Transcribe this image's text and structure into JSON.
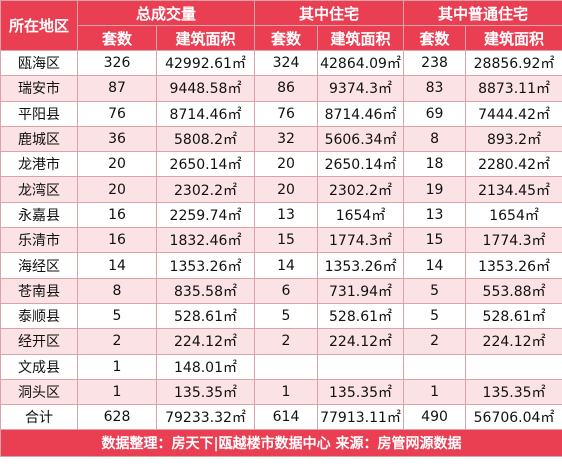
{
  "headers": {
    "region": "所在地区",
    "group1": "总成交量",
    "group2": "其中住宅",
    "group3": "其中普通住宅",
    "units": "套数",
    "area": "建筑面积"
  },
  "rows": [
    {
      "region": "瓯海区",
      "u1": "326",
      "a1": "42992.61㎡",
      "u2": "324",
      "a2": "42864.09㎡",
      "u3": "238",
      "a3": "28856.92㎡"
    },
    {
      "region": "瑞安市",
      "u1": "87",
      "a1": "9448.58㎡",
      "u2": "86",
      "a2": "9374.3㎡",
      "u3": "83",
      "a3": "8873.11㎡"
    },
    {
      "region": "平阳县",
      "u1": "76",
      "a1": "8714.46㎡",
      "u2": "76",
      "a2": "8714.46㎡",
      "u3": "69",
      "a3": "7444.42㎡"
    },
    {
      "region": "鹿城区",
      "u1": "36",
      "a1": "5808.2㎡",
      "u2": "32",
      "a2": "5606.34㎡",
      "u3": "8",
      "a3": "893.2㎡"
    },
    {
      "region": "龙港市",
      "u1": "20",
      "a1": "2650.14㎡",
      "u2": "20",
      "a2": "2650.14㎡",
      "u3": "18",
      "a3": "2280.42㎡"
    },
    {
      "region": "龙湾区",
      "u1": "20",
      "a1": "2302.2㎡",
      "u2": "20",
      "a2": "2302.2㎡",
      "u3": "19",
      "a3": "2134.45㎡"
    },
    {
      "region": "永嘉县",
      "u1": "16",
      "a1": "2259.74㎡",
      "u2": "13",
      "a2": "1654㎡",
      "u3": "13",
      "a3": "1654㎡"
    },
    {
      "region": "乐清市",
      "u1": "16",
      "a1": "1832.46㎡",
      "u2": "15",
      "a2": "1774.3㎡",
      "u3": "15",
      "a3": "1774.3㎡"
    },
    {
      "region": "海经区",
      "u1": "14",
      "a1": "1353.26㎡",
      "u2": "14",
      "a2": "1353.26㎡",
      "u3": "14",
      "a3": "1353.26㎡"
    },
    {
      "region": "苍南县",
      "u1": "8",
      "a1": "835.58㎡",
      "u2": "6",
      "a2": "731.94㎡",
      "u3": "5",
      "a3": "553.88㎡"
    },
    {
      "region": "泰顺县",
      "u1": "5",
      "a1": "528.61㎡",
      "u2": "5",
      "a2": "528.61㎡",
      "u3": "5",
      "a3": "528.61㎡"
    },
    {
      "region": "经开区",
      "u1": "2",
      "a1": "224.12㎡",
      "u2": "2",
      "a2": "224.12㎡",
      "u3": "2",
      "a3": "224.12㎡"
    },
    {
      "region": "文成县",
      "u1": "1",
      "a1": "148.01㎡",
      "u2": "",
      "a2": "",
      "u3": "",
      "a3": ""
    },
    {
      "region": "洞头区",
      "u1": "1",
      "a1": "135.35㎡",
      "u2": "1",
      "a2": "135.35㎡",
      "u3": "1",
      "a3": "135.35㎡"
    }
  ],
  "total": {
    "region": "合计",
    "u1": "628",
    "a1": "79233.32㎡",
    "u2": "614",
    "a2": "77913.11㎡",
    "u3": "490",
    "a3": "56706.04㎡"
  },
  "footer": "数据整理：房天下|瓯越楼市数据中心    来源：房管网源数据",
  "colors": {
    "header_bg": "#ea3e53",
    "stripe": "#fbe2e4",
    "border": "#d9a3a8"
  }
}
